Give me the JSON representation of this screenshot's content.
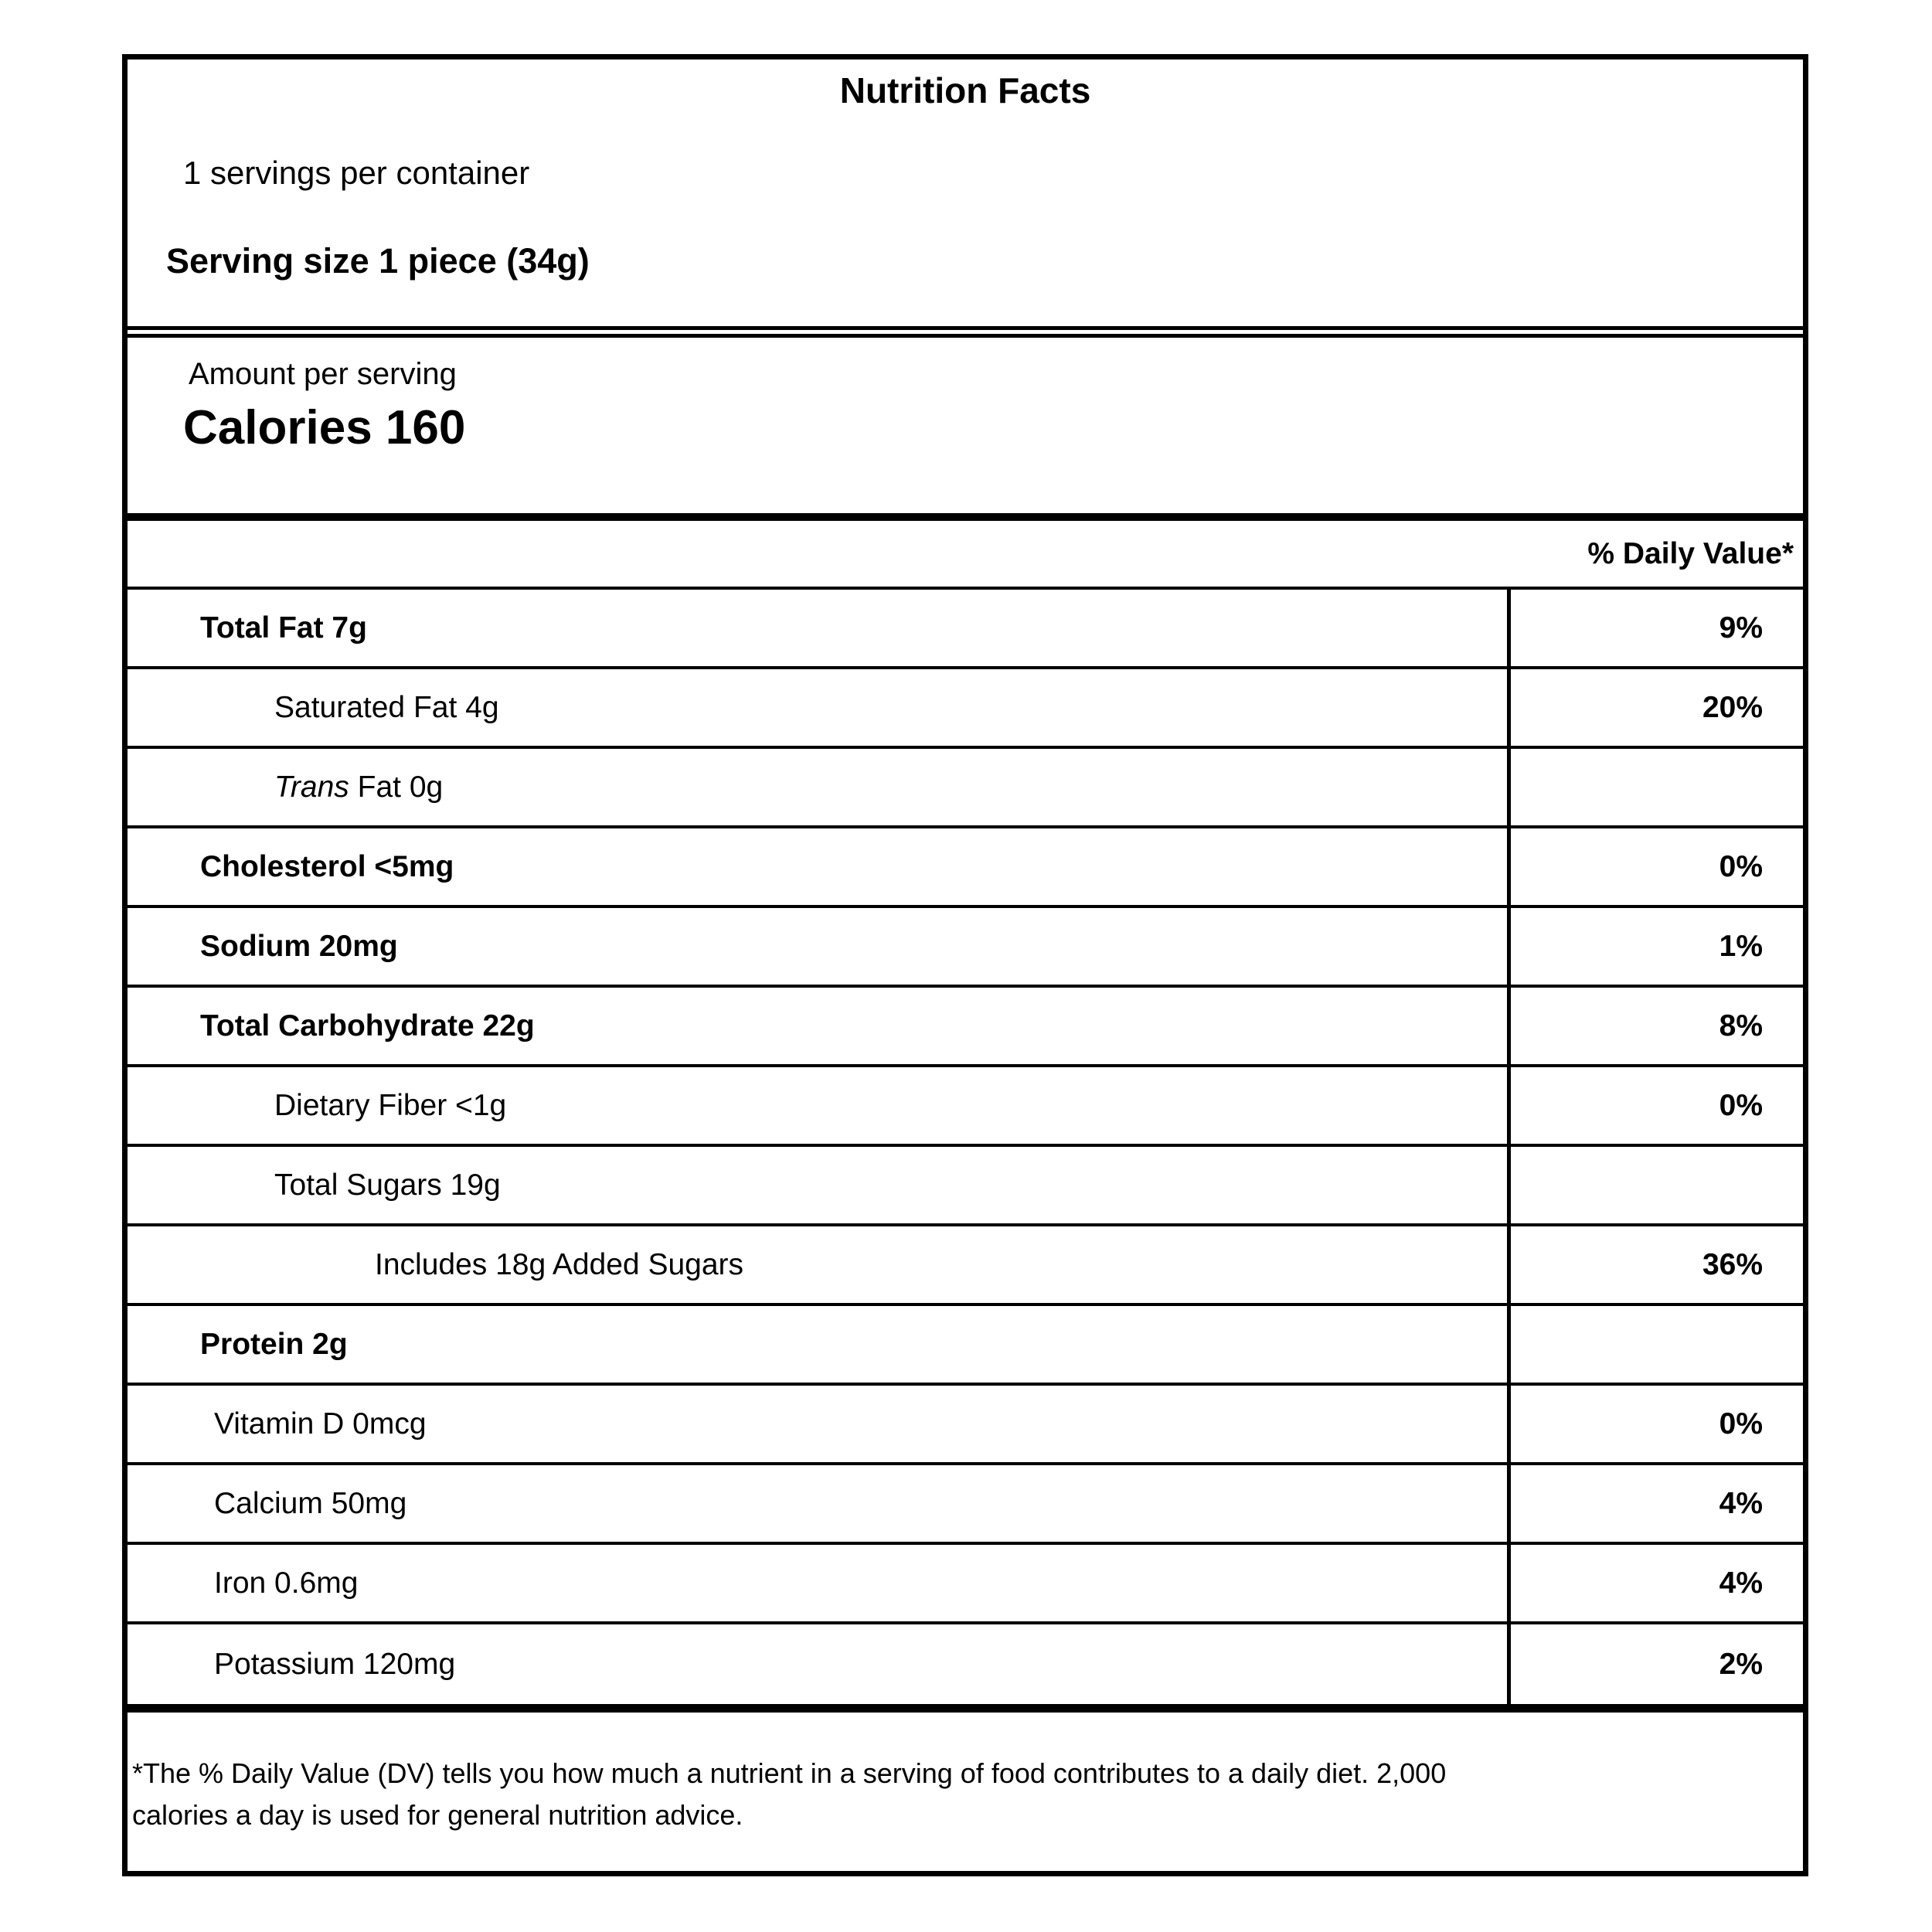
{
  "label": {
    "title": "Nutrition Facts",
    "servings_per_container": "1 servings per container",
    "serving_size_line": "Serving size 1 piece (34g)",
    "amount_per_serving": "Amount per serving",
    "calories_line": "Calories 160",
    "daily_value_header": "% Daily Value*",
    "rows": [
      {
        "name": "total-fat",
        "bold": "Total Fat 7g",
        "dv": "9%"
      },
      {
        "name": "saturated-fat",
        "text": "Saturated Fat 4g",
        "dv": "20%"
      },
      {
        "name": "trans-fat",
        "italic": "Trans",
        "text": " Fat 0g",
        "dv": ""
      },
      {
        "name": "cholesterol",
        "bold": "Cholesterol <5mg",
        "dv": "0%"
      },
      {
        "name": "sodium",
        "bold": "Sodium 20mg",
        "dv": "1%"
      },
      {
        "name": "total-carbohydrate",
        "bold": "Total Carbohydrate 22g",
        "dv": "8%"
      },
      {
        "name": "dietary-fiber",
        "text": "Dietary Fiber <1g",
        "dv": "0%"
      },
      {
        "name": "total-sugars",
        "text": "Total Sugars 19g",
        "dv": ""
      },
      {
        "name": "added-sugars",
        "text": "Includes 18g Added Sugars",
        "dv": "36%"
      },
      {
        "name": "protein",
        "bold": "Protein 2g",
        "dv": ""
      },
      {
        "name": "vitamin-d",
        "text": "Vitamin D 0mcg",
        "dv": "0%"
      },
      {
        "name": "calcium",
        "text": "Calcium 50mg",
        "dv": "4%"
      },
      {
        "name": "iron",
        "text": "Iron 0.6mg",
        "dv": "4%"
      },
      {
        "name": "potassium",
        "text": "Potassium 120mg",
        "dv": "2%"
      }
    ],
    "footnote_line1": "*The % Daily Value (DV) tells you how much a nutrient in a serving of food contributes to a daily diet. 2,000",
    "footnote_line2": "calories a day is used for general nutrition advice."
  }
}
